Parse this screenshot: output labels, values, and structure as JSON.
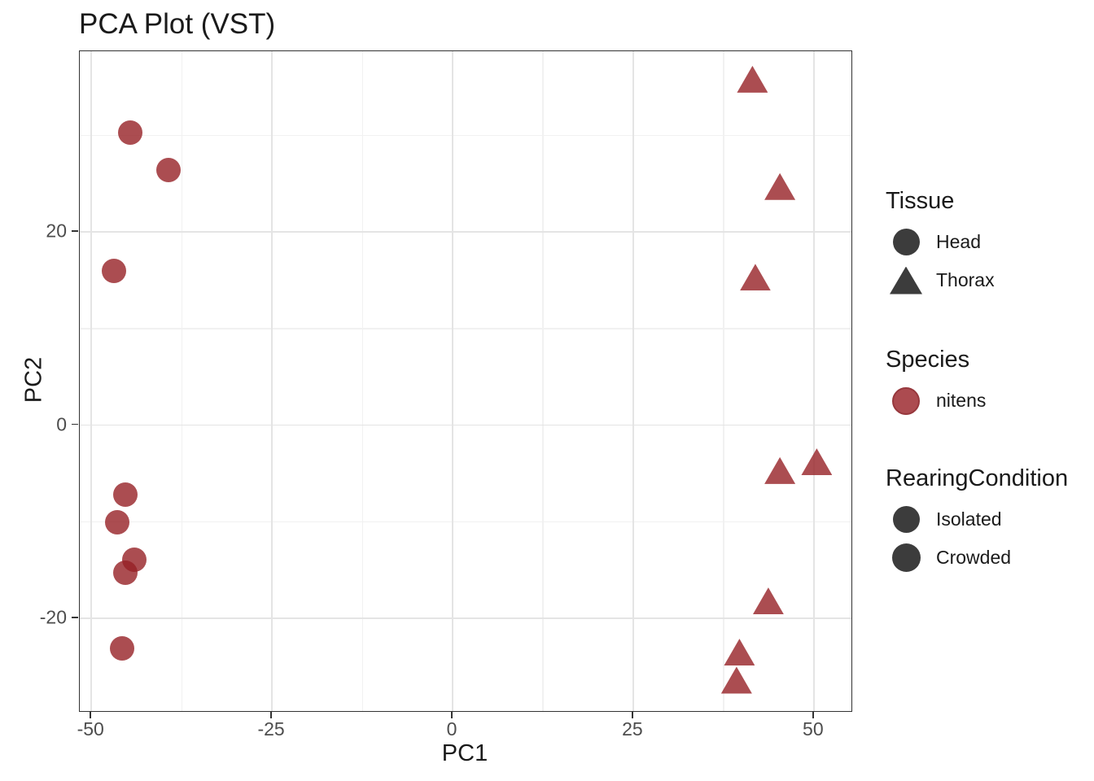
{
  "title": "PCA Plot (VST)",
  "axes": {
    "x": {
      "label": "PC1",
      "tick_values": [
        -50,
        -25,
        0,
        25,
        50
      ],
      "tick_labels": [
        "-50",
        "-25",
        "0",
        "25",
        "50"
      ],
      "minor_values": [
        -37.5,
        -12.5,
        12.5,
        37.5
      ],
      "range": [
        -51.6,
        55.2
      ]
    },
    "y": {
      "label": "PC2",
      "tick_values": [
        20,
        0,
        -20
      ],
      "tick_labels": [
        "20",
        "0",
        "-20"
      ],
      "minor_values": [
        30,
        10,
        -10
      ],
      "range": [
        -29.6,
        38.7
      ]
    }
  },
  "legend": {
    "groups": [
      {
        "title": "Tissue",
        "items": [
          {
            "label": "Head",
            "shape": "circle",
            "color": "#3c3c3c"
          },
          {
            "label": "Thorax",
            "shape": "triangle",
            "color": "#3c3c3c"
          }
        ]
      },
      {
        "title": "Species",
        "items": [
          {
            "label": "nitens",
            "shape": "circle",
            "color": "#ac4b50"
          }
        ]
      },
      {
        "title": "RearingCondition",
        "items": [
          {
            "label": "Isolated",
            "shape": "circle",
            "color": "#3c3c3c"
          },
          {
            "label": "Crowded",
            "shape": "circle",
            "color": "#3c3c3c"
          }
        ]
      }
    ]
  },
  "colors": {
    "point_hex": "#962026",
    "point_alpha": 0.8,
    "point_on_white": "#ab4b50",
    "legend_glyph": "#3c3c3c",
    "panel_border": "#333333",
    "grid_major": "#e4e4e4",
    "grid_minor": "#f1f1f1",
    "tick_text": "#4d4d4d"
  },
  "chart_data": {
    "type": "scatter",
    "title": "PCA Plot (VST)",
    "xlabel": "PC1",
    "ylabel": "PC2",
    "xlim": [
      -51.6,
      55.2
    ],
    "ylim": [
      -29.6,
      38.7
    ],
    "x_ticks": [
      -50,
      -25,
      0,
      25,
      50
    ],
    "y_ticks": [
      -20,
      0,
      20
    ],
    "grid": "major-and-minor",
    "legend_position": "right",
    "point_color": "#962026",
    "point_alpha": 0.8,
    "species": "nitens",
    "series": [
      {
        "name": "Head",
        "tissue": "Head",
        "marker": "circle",
        "points": [
          {
            "x": -44.6,
            "y": 30.3
          },
          {
            "x": -39.3,
            "y": 26.4
          },
          {
            "x": -46.9,
            "y": 16.0
          },
          {
            "x": -45.3,
            "y": -7.2
          },
          {
            "x": -46.4,
            "y": -10.1
          },
          {
            "x": -44.1,
            "y": -13.9
          },
          {
            "x": -45.3,
            "y": -15.3
          },
          {
            "x": -45.7,
            "y": -23.1
          }
        ]
      },
      {
        "name": "Thorax",
        "tissue": "Thorax",
        "marker": "triangle",
        "points": [
          {
            "x": 41.5,
            "y": 35.8
          },
          {
            "x": 45.3,
            "y": 24.7
          },
          {
            "x": 41.9,
            "y": 15.3
          },
          {
            "x": 45.3,
            "y": -4.7
          },
          {
            "x": 50.4,
            "y": -3.8
          },
          {
            "x": 43.7,
            "y": -18.2
          },
          {
            "x": 39.7,
            "y": -23.5
          },
          {
            "x": 39.3,
            "y": -26.4
          }
        ]
      }
    ]
  }
}
